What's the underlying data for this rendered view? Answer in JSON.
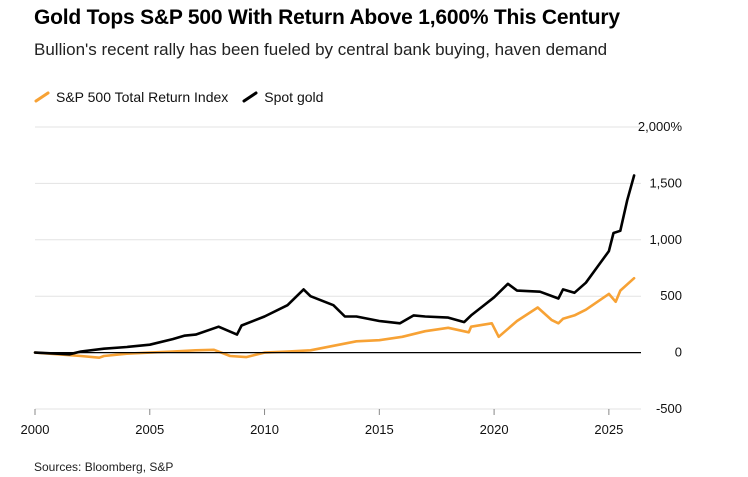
{
  "header": {
    "title": "Gold Tops S&P 500 With Return Above 1,600% This Century",
    "subtitle": "Bullion's recent rally has been fueled by central bank buying, haven demand"
  },
  "legend": [
    {
      "label": "S&P 500 Total Return Index",
      "color": "#f7a235"
    },
    {
      "label": "Spot gold",
      "color": "#000000"
    }
  ],
  "footer": {
    "source": "Sources: Bloomberg, S&P"
  },
  "chart_data": {
    "type": "line",
    "title": "Gold Tops S&P 500 With Return Above 1,600% This Century",
    "xlabel": "",
    "ylabel": "",
    "xlim": [
      2000,
      2026.4
    ],
    "ylim": [
      -500,
      2000
    ],
    "x_ticks": [
      {
        "value": 2000,
        "label": "2000"
      },
      {
        "value": 2005,
        "label": "2005"
      },
      {
        "value": 2010,
        "label": "2010"
      },
      {
        "value": 2015,
        "label": "2015"
      },
      {
        "value": 2020,
        "label": "2020"
      },
      {
        "value": 2025,
        "label": "2025"
      }
    ],
    "y_ticks": [
      {
        "value": 2000,
        "label": "2,000%"
      },
      {
        "value": 1500,
        "label": "1,500"
      },
      {
        "value": 1000,
        "label": "1,000"
      },
      {
        "value": 500,
        "label": "500"
      },
      {
        "value": 0,
        "label": "0"
      },
      {
        "value": -500,
        "label": "-500"
      }
    ],
    "series": [
      {
        "name": "Spot gold",
        "color": "#000000",
        "x": [
          2000,
          2001,
          2001.5,
          2002,
          2003,
          2004,
          2005,
          2006,
          2006.5,
          2007,
          2008,
          2008.8,
          2009,
          2010,
          2011,
          2011.7,
          2012,
          2013,
          2013.5,
          2014,
          2015,
          2015.9,
          2016.5,
          2017,
          2018,
          2018.7,
          2019,
          2019.5,
          2020,
          2020.6,
          2021,
          2022,
          2022.8,
          2023,
          2023.5,
          2024,
          2024.5,
          2025,
          2025.2,
          2025.5,
          2025.8,
          2026.1
        ],
        "values": [
          0,
          -10,
          -15,
          10,
          35,
          50,
          70,
          120,
          150,
          160,
          230,
          160,
          240,
          320,
          420,
          560,
          500,
          420,
          320,
          320,
          280,
          260,
          330,
          320,
          310,
          270,
          330,
          410,
          490,
          610,
          550,
          540,
          480,
          560,
          530,
          620,
          760,
          900,
          1060,
          1080,
          1350,
          1570
        ]
      },
      {
        "name": "S&P 500 Total Return Index",
        "color": "#f7a235",
        "x": [
          2000,
          2001,
          2002,
          2002.8,
          2003,
          2004,
          2005,
          2006,
          2007,
          2007.8,
          2008.5,
          2009.2,
          2010,
          2011,
          2012,
          2013,
          2014,
          2015,
          2016,
          2017,
          2018,
          2018.9,
          2019,
          2019.9,
          2020.2,
          2021,
          2021.9,
          2022.5,
          2022.8,
          2023,
          2023.5,
          2024,
          2024.5,
          2025,
          2025.3,
          2025.5,
          2026.1
        ],
        "values": [
          0,
          -15,
          -30,
          -45,
          -30,
          -10,
          0,
          10,
          20,
          25,
          -30,
          -40,
          0,
          10,
          20,
          60,
          100,
          110,
          140,
          190,
          220,
          180,
          230,
          260,
          140,
          280,
          400,
          290,
          260,
          300,
          330,
          380,
          450,
          520,
          450,
          550,
          660
        ]
      }
    ]
  }
}
